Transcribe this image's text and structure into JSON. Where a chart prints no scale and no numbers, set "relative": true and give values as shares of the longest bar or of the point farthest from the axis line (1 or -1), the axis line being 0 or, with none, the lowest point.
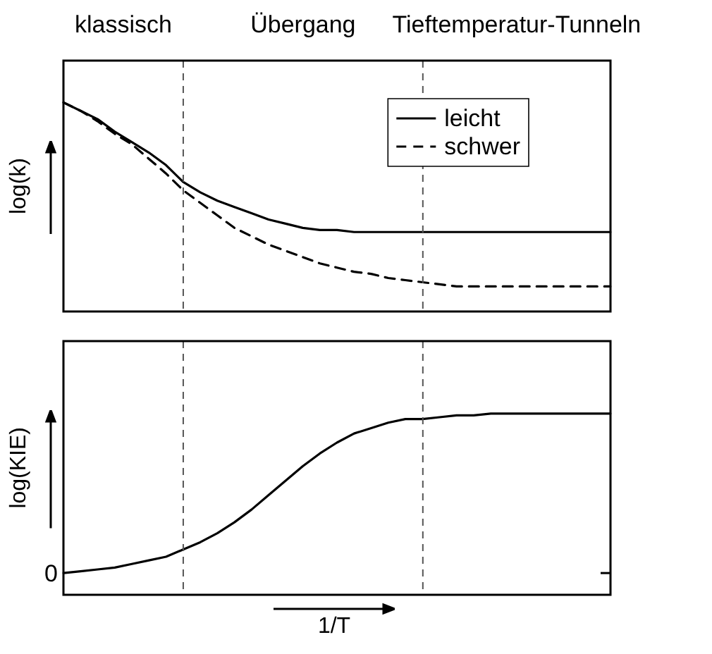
{
  "chart_data": [
    {
      "type": "line",
      "ylabel": "log(k)",
      "relative": true,
      "legend": "top right",
      "marker": "none",
      "tick_labels": false,
      "annotations": [
        "klassisch",
        "Übergang",
        "Tieftemperatur-Tunneln"
      ],
      "categories": [
        null,
        null,
        null,
        null,
        null,
        null,
        null,
        null,
        null,
        null,
        null,
        null,
        null,
        null,
        null,
        null,
        null,
        null,
        null,
        null,
        null,
        null,
        null,
        null,
        null,
        null,
        null,
        null,
        null,
        null,
        null,
        null,
        null
      ],
      "series": [
        {
          "name": "leicht",
          "color": "#000000",
          "line_style": "solid",
          "values": [
            1,
            0.96,
            0.92,
            0.86,
            0.81,
            0.76,
            0.7,
            0.62,
            0.57,
            0.53,
            0.5,
            0.47,
            0.44,
            0.42,
            0.4,
            0.39,
            0.39,
            0.38,
            0.38,
            0.38,
            0.38,
            0.38,
            0.38,
            0.38,
            0.38,
            0.38,
            0.38,
            0.38,
            0.38,
            0.38,
            0.38,
            0.38,
            0.38
          ]
        },
        {
          "name": "schwer",
          "color": "#000000",
          "line_style": "dashed",
          "values": [
            1,
            0.96,
            0.91,
            0.85,
            0.8,
            0.73,
            0.66,
            0.58,
            0.52,
            0.46,
            0.4,
            0.36,
            0.32,
            0.29,
            0.26,
            0.23,
            0.21,
            0.19,
            0.18,
            0.16,
            0.15,
            0.14,
            0.13,
            0.12,
            0.12,
            0.12,
            0.12,
            0.12,
            0.12,
            0.12,
            0.12,
            0.12,
            0.12
          ]
        }
      ]
    },
    {
      "type": "line",
      "ylabel": "log(KIE)",
      "xlabel": "1/T",
      "relative": true,
      "marker": "none",
      "tick_labels": false,
      "annotations": [
        "0"
      ],
      "categories": [
        null,
        null,
        null,
        null,
        null,
        null,
        null,
        null,
        null,
        null,
        null,
        null,
        null,
        null,
        null,
        null,
        null,
        null,
        null,
        null,
        null,
        null,
        null,
        null,
        null,
        null,
        null,
        null,
        null,
        null,
        null,
        null,
        null
      ],
      "series": [
        {
          "color": "#000000",
          "line_style": "solid",
          "values": [
            0.12,
            0.13,
            0.14,
            0.15,
            0.17,
            0.19,
            0.21,
            0.25,
            0.29,
            0.34,
            0.4,
            0.47,
            0.55,
            0.63,
            0.71,
            0.78,
            0.84,
            0.89,
            0.92,
            0.95,
            0.97,
            0.97,
            0.98,
            0.99,
            0.99,
            1,
            1,
            1,
            1,
            1,
            1,
            1,
            1
          ]
        }
      ]
    }
  ]
}
